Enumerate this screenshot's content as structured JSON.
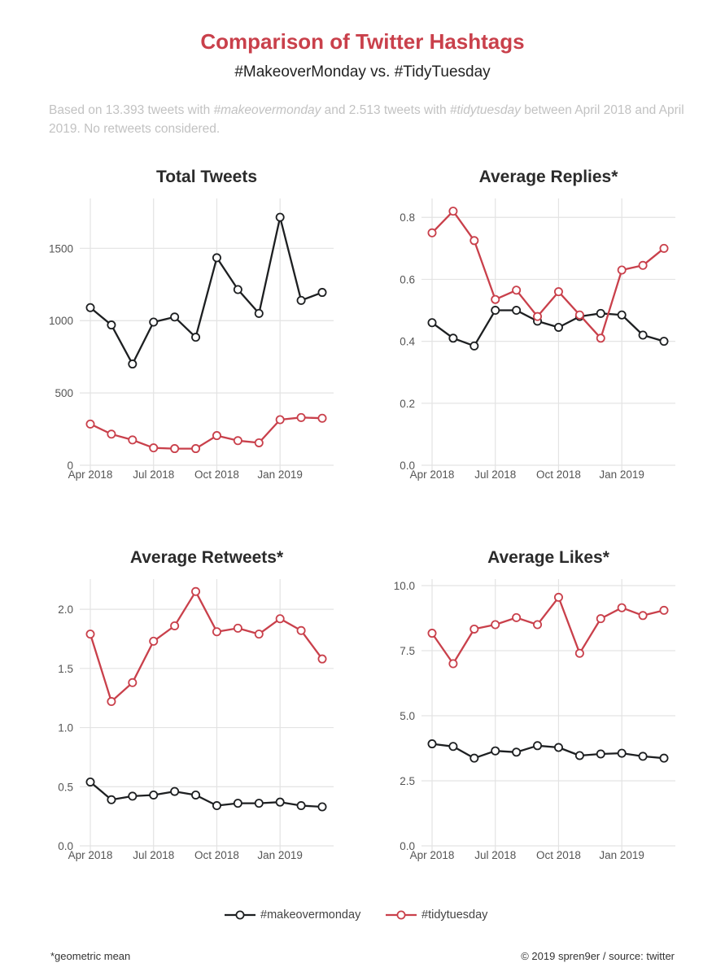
{
  "title": "Comparison of Twitter Hashtags",
  "subtitle": "#MakeoverMonday vs. #TidyTuesday",
  "caption": {
    "p1": "Based on 13.393 tweets with ",
    "tag1": "#makeovermonday",
    "p2": " and 2.513 tweets with ",
    "tag2": "#tidytuesday",
    "p3": " between April 2018 and April 2019. No retweets considered."
  },
  "legend": {
    "makeover": "#makeovermonday",
    "tidy": "#tidytuesday"
  },
  "colors": {
    "makeover": "#1d1f21",
    "tidy": "#c9404b",
    "grid": "#e3e3e3",
    "title": "#c9404b"
  },
  "footnote": "*geometric mean",
  "credits": "© 2019 spren9er / source: twitter",
  "chart_data": [
    {
      "type": "line",
      "title": "Total Tweets",
      "x": [
        "Apr 2018",
        "May 2018",
        "Jun 2018",
        "Jul 2018",
        "Aug 2018",
        "Sep 2018",
        "Oct 2018",
        "Nov 2018",
        "Dec 2018",
        "Jan 2019",
        "Feb 2019",
        "Mar 2019"
      ],
      "xticks": [
        "Apr 2018",
        "Jul 2018",
        "Oct 2018",
        "Jan 2019"
      ],
      "ylim": [
        0,
        1800
      ],
      "yticks": [
        0,
        500,
        1000,
        1500
      ],
      "ytick_labels": [
        "0",
        "500",
        "1000",
        "1500"
      ],
      "series": [
        {
          "name": "#makeovermonday",
          "values": [
            1090,
            970,
            700,
            990,
            1025,
            885,
            1435,
            1215,
            1050,
            1715,
            1140,
            1195
          ]
        },
        {
          "name": "#tidytuesday",
          "values": [
            285,
            215,
            175,
            120,
            115,
            115,
            205,
            170,
            155,
            315,
            330,
            325
          ]
        }
      ]
    },
    {
      "type": "line",
      "title": "Average Replies*",
      "x": [
        "Apr 2018",
        "May 2018",
        "Jun 2018",
        "Jul 2018",
        "Aug 2018",
        "Sep 2018",
        "Oct 2018",
        "Nov 2018",
        "Dec 2018",
        "Jan 2019",
        "Feb 2019",
        "Mar 2019"
      ],
      "xticks": [
        "Apr 2018",
        "Jul 2018",
        "Oct 2018",
        "Jan 2019"
      ],
      "ylim": [
        0,
        0.84
      ],
      "yticks": [
        0,
        0.2,
        0.4,
        0.6,
        0.8
      ],
      "ytick_labels": [
        "0.0",
        "0.2",
        "0.4",
        "0.6",
        "0.8"
      ],
      "series": [
        {
          "name": "#makeovermonday",
          "values": [
            0.46,
            0.41,
            0.385,
            0.5,
            0.5,
            0.465,
            0.445,
            0.48,
            0.49,
            0.485,
            0.42,
            0.4
          ]
        },
        {
          "name": "#tidytuesday",
          "values": [
            0.75,
            0.82,
            0.725,
            0.535,
            0.565,
            0.48,
            0.56,
            0.485,
            0.41,
            0.63,
            0.645,
            0.7
          ]
        }
      ]
    },
    {
      "type": "line",
      "title": "Average Retweets*",
      "x": [
        "Apr 2018",
        "May 2018",
        "Jun 2018",
        "Jul 2018",
        "Aug 2018",
        "Sep 2018",
        "Oct 2018",
        "Nov 2018",
        "Dec 2018",
        "Jan 2019",
        "Feb 2019",
        "Mar 2019"
      ],
      "xticks": [
        "Apr 2018",
        "Jul 2018",
        "Oct 2018",
        "Jan 2019"
      ],
      "ylim": [
        0,
        2.2
      ],
      "yticks": [
        0,
        0.5,
        1.0,
        1.5,
        2.0
      ],
      "ytick_labels": [
        "0.0",
        "0.5",
        "1.0",
        "1.5",
        "2.0"
      ],
      "series": [
        {
          "name": "#makeovermonday",
          "values": [
            0.54,
            0.39,
            0.42,
            0.43,
            0.46,
            0.43,
            0.34,
            0.36,
            0.36,
            0.37,
            0.34,
            0.33
          ]
        },
        {
          "name": "#tidytuesday",
          "values": [
            1.79,
            1.22,
            1.38,
            1.73,
            1.86,
            2.15,
            1.81,
            1.84,
            1.79,
            1.92,
            1.82,
            1.58
          ]
        }
      ]
    },
    {
      "type": "line",
      "title": "Average Likes*",
      "x": [
        "Apr 2018",
        "May 2018",
        "Jun 2018",
        "Jul 2018",
        "Aug 2018",
        "Sep 2018",
        "Oct 2018",
        "Nov 2018",
        "Dec 2018",
        "Jan 2019",
        "Feb 2019",
        "Mar 2019"
      ],
      "xticks": [
        "Apr 2018",
        "Jul 2018",
        "Oct 2018",
        "Jan 2019"
      ],
      "ylim": [
        0,
        10
      ],
      "yticks": [
        0,
        2.5,
        5,
        7.5,
        10
      ],
      "ytick_labels": [
        "0.0",
        "2.5",
        "5.0",
        "7.5",
        "10.0"
      ],
      "series": [
        {
          "name": "#makeovermonday",
          "values": [
            3.92,
            3.82,
            3.37,
            3.65,
            3.6,
            3.85,
            3.78,
            3.47,
            3.53,
            3.56,
            3.44,
            3.37
          ]
        },
        {
          "name": "#tidytuesday",
          "values": [
            8.17,
            7.0,
            8.33,
            8.5,
            8.77,
            8.5,
            9.55,
            7.4,
            8.73,
            9.15,
            8.85,
            9.05
          ]
        }
      ]
    }
  ]
}
